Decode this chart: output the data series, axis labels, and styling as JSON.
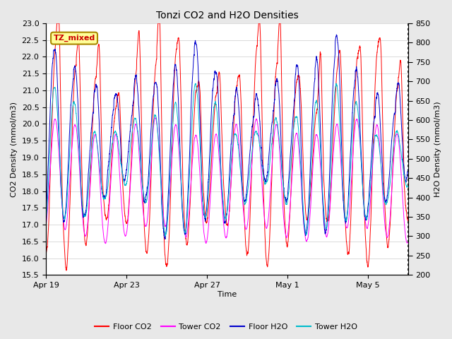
{
  "title": "Tonzi CO2 and H2O Densities",
  "xlabel": "Time",
  "ylabel_left": "CO2 Density (mmol/m3)",
  "ylabel_right": "H2O Density (mmol/m3)",
  "annotation_text": "TZ_mixed",
  "annotation_bg": "#ffff99",
  "annotation_border": "#aa8800",
  "annotation_text_color": "#cc0000",
  "ylim_left": [
    15.5,
    23.0
  ],
  "ylim_right": [
    200,
    850
  ],
  "yticks_left": [
    15.5,
    16.0,
    16.5,
    17.0,
    17.5,
    18.0,
    18.5,
    19.0,
    19.5,
    20.0,
    20.5,
    21.0,
    21.5,
    22.0,
    22.5,
    23.0
  ],
  "yticks_right": [
    200,
    250,
    300,
    350,
    400,
    450,
    500,
    550,
    600,
    650,
    700,
    750,
    800,
    850
  ],
  "xtick_positions": [
    0,
    4,
    8,
    12,
    16
  ],
  "xtick_labels": [
    "Apr 19",
    "Apr 23",
    "Apr 27",
    "May 1",
    "May 5"
  ],
  "colors": {
    "floor_co2": "#ff0000",
    "tower_co2": "#ff00ff",
    "floor_h2o": "#0000cc",
    "tower_h2o": "#00bbcc"
  },
  "legend_labels": [
    "Floor CO2",
    "Tower CO2",
    "Floor H2O",
    "Tower H2O"
  ],
  "bg_color": "#e8e8e8",
  "plot_bg_color": "#ffffff",
  "grid_color": "#cccccc",
  "n_days": 18,
  "n_points": 5000,
  "line_width": 0.7,
  "figsize": [
    6.4,
    4.8
  ],
  "dpi": 100
}
